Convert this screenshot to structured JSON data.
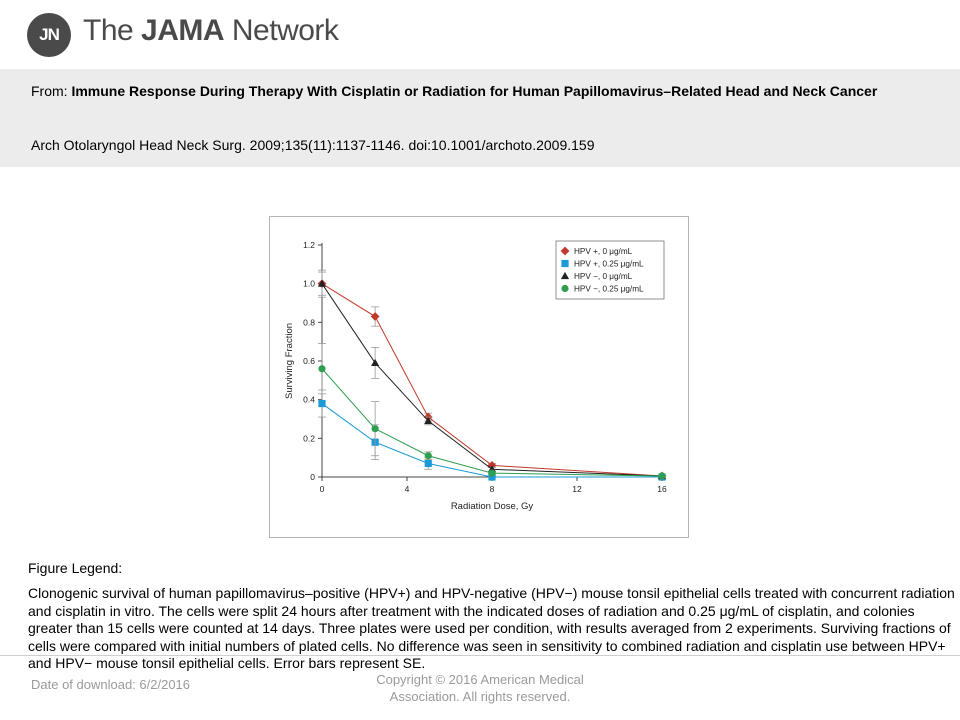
{
  "brand": {
    "mark": "JN",
    "name_prefix": "The ",
    "name_bold": "JAMA",
    "name_suffix": " Network"
  },
  "article": {
    "from_label": "From:",
    "title": "Immune Response During Therapy With Cisplatin or Radiation for Human Papillomavirus–Related Head and Neck Cancer",
    "citation": "Arch Otolaryngol Head Neck Surg. 2009;135(11):1137-1146. doi:10.1001/archoto.2009.159"
  },
  "figure_legend": {
    "title": "Figure Legend:",
    "text": "Clonogenic survival of human papillomavirus–positive (HPV+) and HPV-negative (HPV−) mouse tonsil epithelial cells treated with concurrent radiation and cisplatin in vitro. The cells were split 24 hours after treatment with the indicated doses of radiation and 0.25 μg/mL of cisplatin, and colonies greater than 15 cells were counted at 14 days. Three plates were used per condition, with results averaged from 2 experiments. Surviving fractions of cells were compared with initial numbers of plated cells. No difference was seen in sensitivity to combined radiation and cisplatin use between HPV+ and HPV− mouse tonsil epithelial cells. Error bars represent SE."
  },
  "footer": {
    "download": "Date of download:  6/2/2016",
    "copyright": "Copyright © 2016 American Medical Association. All rights reserved."
  },
  "chart_data": {
    "type": "line",
    "xlabel": "Radiation Dose, Gy",
    "ylabel": "Surviving Fraction",
    "xlim": [
      0,
      16
    ],
    "ylim": [
      0,
      1.2
    ],
    "xticks": [
      0,
      4,
      8,
      12,
      16
    ],
    "yticks": [
      0,
      0.2,
      0.4,
      0.6,
      0.8,
      1.0,
      1.2
    ],
    "ytick_labels": [
      "0",
      "0.2",
      "0.4",
      "0.6",
      "0.8",
      "1.0",
      "1.2"
    ],
    "grid": false,
    "legend_position": "top-right",
    "series": [
      {
        "name": "HPV +,  0 μg/mL",
        "color": "#c0392b",
        "marker": "diamond",
        "x": [
          0,
          2.5,
          5,
          8,
          16
        ],
        "y": [
          1.0,
          0.83,
          0.31,
          0.06,
          0.005
        ],
        "err": [
          0.07,
          0.05,
          0.02,
          0.01,
          0.003
        ]
      },
      {
        "name": "HPV +,  0.25 μg/mL",
        "color": "#1a9ad6",
        "marker": "square",
        "x": [
          0,
          2.5,
          5,
          8,
          16
        ],
        "y": [
          0.38,
          0.18,
          0.07,
          0.0,
          0.0
        ],
        "err": [
          0.07,
          0.09,
          0.03,
          0.005,
          0.003
        ]
      },
      {
        "name": "HPV −,  0 μg/mL",
        "color": "#222222",
        "marker": "triangle",
        "x": [
          0,
          2.5,
          5,
          8,
          16
        ],
        "y": [
          1.0,
          0.59,
          0.29,
          0.04,
          0.005
        ],
        "err": [
          0.06,
          0.08,
          0.02,
          0.01,
          0.003
        ]
      },
      {
        "name": "HPV −,  0.25 μg/mL",
        "color": "#2e9e4f",
        "marker": "circle",
        "x": [
          0,
          2.5,
          5,
          8,
          16
        ],
        "y": [
          0.56,
          0.25,
          0.11,
          0.02,
          0.005
        ],
        "err": [
          0.13,
          0.14,
          0.02,
          0.005,
          0.003
        ]
      }
    ]
  }
}
